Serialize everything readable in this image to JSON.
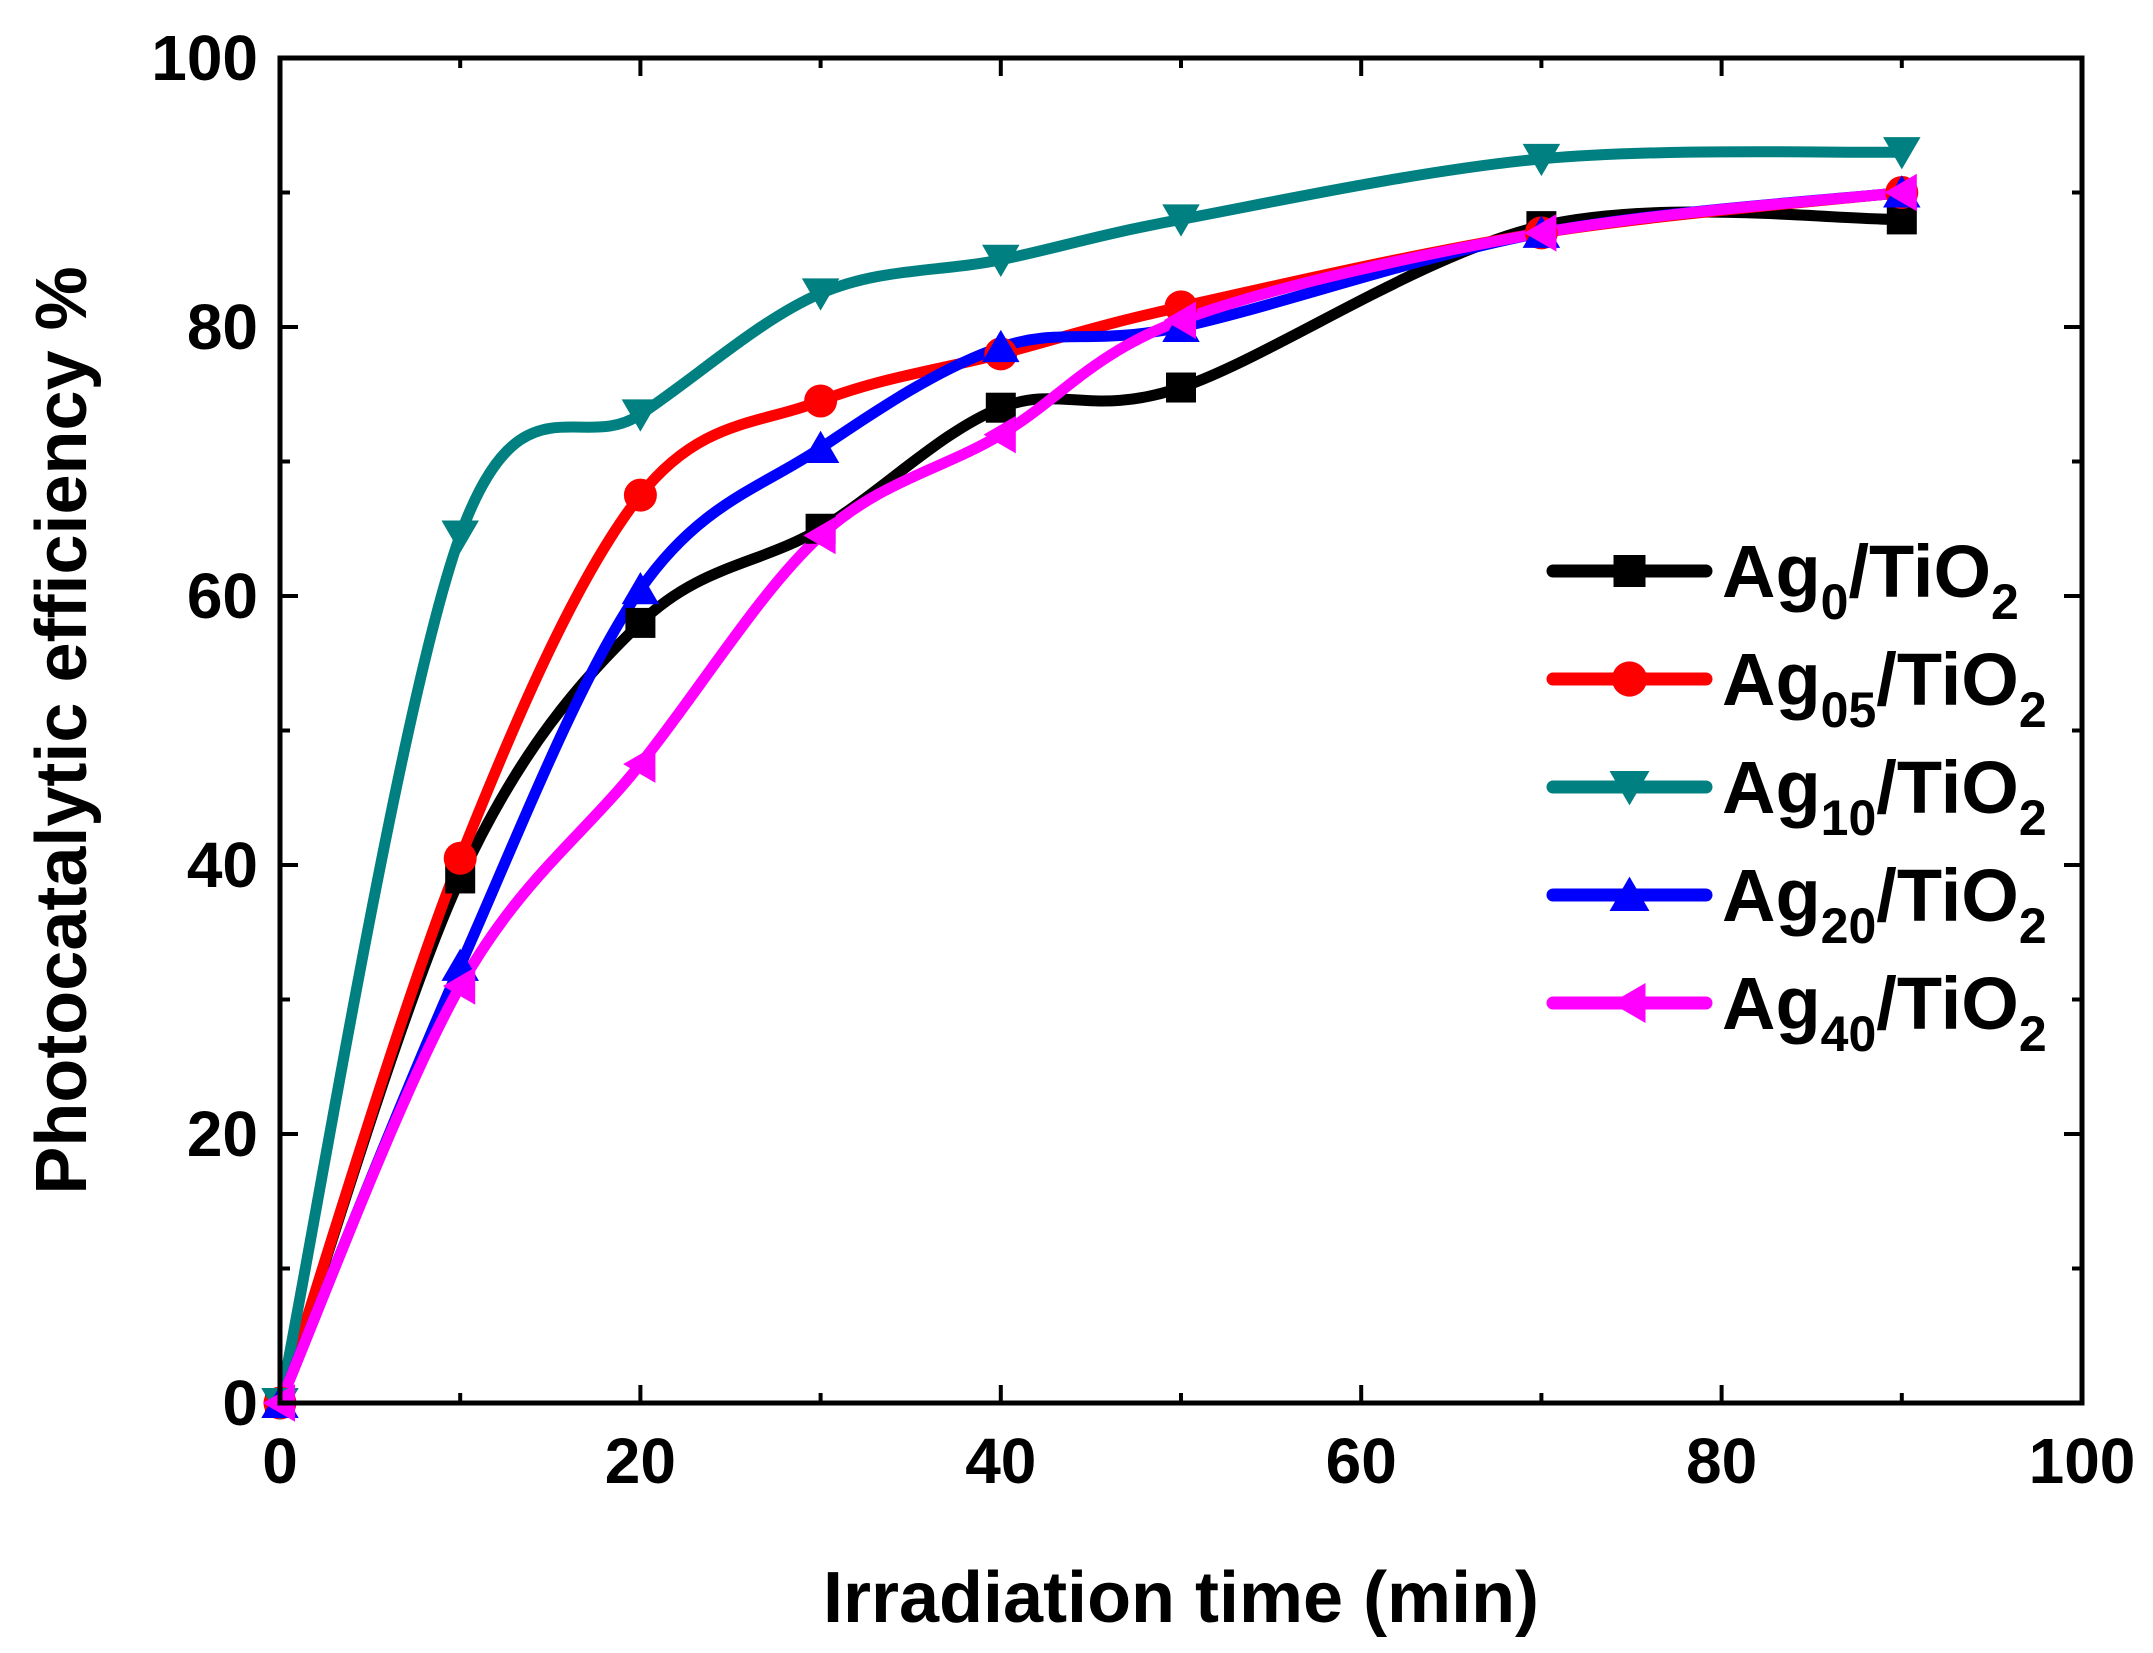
{
  "chart_data": {
    "type": "line",
    "title": "",
    "xlabel": "Irradiation time (min)",
    "ylabel": "Photocatalytic efficiency %",
    "xlim": [
      0,
      100
    ],
    "ylim": [
      0,
      100
    ],
    "xticks": [
      0,
      20,
      40,
      60,
      80,
      100
    ],
    "yticks": [
      0,
      20,
      40,
      60,
      80,
      100
    ],
    "grid": false,
    "legend_position": "right-middle",
    "x": [
      0,
      10,
      20,
      30,
      40,
      50,
      70,
      90
    ],
    "series": [
      {
        "name": "Ag0/TiO2",
        "label_main": "Ag",
        "label_sub": "0",
        "label_rest": "/TiO",
        "label_sub2": "2",
        "color": "#000000",
        "marker": "square",
        "values": [
          0,
          39,
          58,
          65,
          74,
          75.5,
          87.5,
          88
        ]
      },
      {
        "name": "Ag05/TiO2",
        "label_main": "Ag",
        "label_sub": "05",
        "label_rest": "/TiO",
        "label_sub2": "2",
        "color": "#ff0000",
        "marker": "circle",
        "values": [
          0,
          40.5,
          67.5,
          74.5,
          78,
          81.5,
          87,
          90
        ]
      },
      {
        "name": "Ag10/TiO2",
        "label_main": "Ag",
        "label_sub": "10",
        "label_rest": "/TiO",
        "label_sub2": "2",
        "color": "#008080",
        "marker": "triangle-down",
        "values": [
          0,
          64.5,
          73.5,
          82.5,
          85,
          88,
          92.5,
          93
        ]
      },
      {
        "name": "Ag20/TiO2",
        "label_main": "Ag",
        "label_sub": "20",
        "label_rest": "/TiO",
        "label_sub2": "2",
        "color": "#0000ff",
        "marker": "triangle-up",
        "values": [
          0,
          32.5,
          60.5,
          71,
          78.5,
          80,
          87,
          90
        ]
      },
      {
        "name": "Ag40/TiO2",
        "label_main": "Ag",
        "label_sub": "40",
        "label_rest": "/TiO",
        "label_sub2": "2",
        "color": "#ff00ff",
        "marker": "triangle-left",
        "values": [
          0,
          31,
          47.5,
          64.5,
          72,
          80.5,
          87,
          90
        ]
      }
    ]
  }
}
